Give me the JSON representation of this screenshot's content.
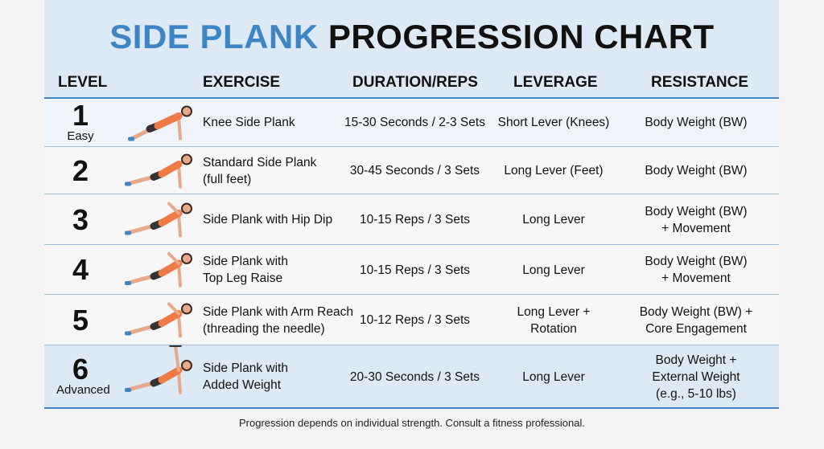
{
  "header": {
    "title_highlight": "SIDE PLANK",
    "title_rest": "PROGRESSION CHART"
  },
  "table": {
    "columns": [
      "LEVEL",
      "EXERCISE",
      "DURATION/REPS",
      "LEVERAGE",
      "RESISTANCE"
    ],
    "rows": [
      {
        "level": 1,
        "level_label": "Easy",
        "exercise": [
          "Knee Side Plank"
        ],
        "duration": [
          "15-30 Seconds / 2-3 Sets"
        ],
        "leverage": [
          "Short Lever (Knees)"
        ],
        "resistance": [
          "Body Weight (BW)"
        ]
      },
      {
        "level": 2,
        "exercise": [
          "Standard Side Plank",
          "(full feet)"
        ],
        "duration": [
          "30-45 Seconds / 3 Sets"
        ],
        "leverage": [
          "Long Lever (Feet)"
        ],
        "resistance": [
          "Body Weight (BW)"
        ]
      },
      {
        "level": 3,
        "exercise": [
          "Side Plank with Hip Dip"
        ],
        "duration": [
          "10-15 Reps / 3 Sets"
        ],
        "leverage": [
          "Long Lever"
        ],
        "resistance": [
          "Body Weight (BW)",
          "+ Movement"
        ]
      },
      {
        "level": 4,
        "exercise": [
          "Side Plank with",
          "Top Leg Raise"
        ],
        "duration": [
          "10-15 Reps / 3 Sets"
        ],
        "leverage": [
          "Long Lever"
        ],
        "resistance": [
          "Body Weight (BW)",
          "+ Movement"
        ]
      },
      {
        "level": 5,
        "exercise": [
          "Side Plank with Arm Reach",
          "(threading the needle)"
        ],
        "duration": [
          "10-12 Reps / 3 Sets"
        ],
        "leverage": [
          "Long Lever +",
          "Rotation"
        ],
        "resistance": [
          "Body Weight (BW) +",
          "Core Engagement"
        ]
      },
      {
        "level": 6,
        "level_label": "Advanced",
        "exercise": [
          "Side Plank with",
          "Added Weight"
        ],
        "duration": [
          "20-30 Seconds / 3 Sets"
        ],
        "leverage": [
          "Long Lever"
        ],
        "resistance": [
          "Body Weight +",
          "External Weight",
          "(e.g., 5-10 lbs)"
        ]
      }
    ]
  },
  "footer": {
    "note": "Progression depends on individual strength. Consult a fitness professional."
  }
}
